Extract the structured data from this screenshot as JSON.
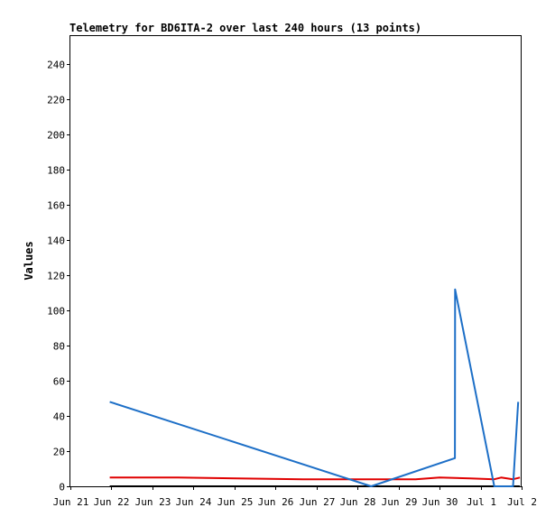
{
  "chart_data": {
    "type": "line",
    "title": "Telemetry for BD6ITA-2 over last 240 hours (13 points)",
    "xlabel": "",
    "ylabel": "Values",
    "x_tick_labels": [
      "Jun 21",
      "Jun 22",
      "Jun 23",
      "Jun 24",
      "Jun 25",
      "Jun 26",
      "Jun 27",
      "Jun 28",
      "Jun 29",
      "Jun 30",
      "Jul 1",
      "Jul 2"
    ],
    "y_tick_labels": [
      "0",
      "20",
      "40",
      "60",
      "80",
      "100",
      "120",
      "140",
      "160",
      "180",
      "200",
      "220",
      "240"
    ],
    "ylim": [
      0,
      256
    ],
    "grid": false,
    "legend": "none",
    "series": [
      {
        "color": "#1d6fc7",
        "x": [
          "Jun 21 23:00",
          "Jun 28 08:00",
          "Jun 30 09:00",
          "Jun 30 09:05",
          "Jul 1 08:00",
          "Jul 1 19:00",
          "Jul 1 22:00"
        ],
        "y": [
          48,
          0,
          16,
          112,
          0,
          0,
          48
        ]
      },
      {
        "color": "#e00000",
        "x": [
          "Jun 21 23:00",
          "Jun 23 15:00",
          "Jun 26 16:00",
          "Jun 29 10:00",
          "Jun 30 00:00",
          "Jun 30 18:00",
          "Jul 1 08:00",
          "Jul 1 12:00",
          "Jul 1 19:00",
          "Jul 1 23:00"
        ],
        "y": [
          5,
          5,
          4,
          4,
          5,
          4.5,
          4,
          5,
          4,
          5
        ]
      },
      {
        "color": "#000000",
        "x": [
          "Jun 21 23:00",
          "Jul 1 23:00"
        ],
        "y": [
          0,
          0
        ]
      }
    ]
  }
}
